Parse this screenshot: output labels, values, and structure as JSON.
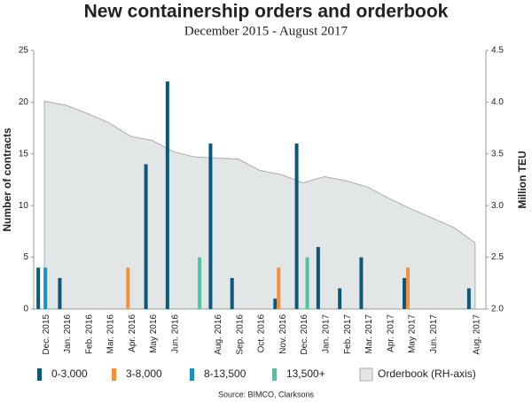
{
  "chart_data": {
    "type": "bar",
    "title": "New containership orders and orderbook",
    "subtitle": "December 2015 - August 2017",
    "y_label": "Number of contracts",
    "y2_label": "Million TEU",
    "source": "Source: BIMCO, Clarksons",
    "categories": [
      "Dec. 2015",
      "Jan. 2016",
      "Feb. 2016",
      "Mar. 2016",
      "Apr. 2016",
      "May 2016",
      "Jun. 2016",
      null,
      "Aug. 2016",
      "Sep. 2016",
      "Oct. 2016",
      "Nov. 2016",
      "Dec. 2016",
      "Jan. 2017",
      "Feb. 2017",
      "Mar. 2017",
      "Apr. 2017",
      "May 2017",
      "Jun. 2017",
      null,
      "Aug. 2017"
    ],
    "series": [
      {
        "name": "0-3,000",
        "color": "#0d587a",
        "values": [
          4,
          3,
          0,
          0,
          0,
          14,
          22,
          0,
          16,
          3,
          0,
          1,
          16,
          6,
          2,
          5,
          0,
          3,
          0,
          0,
          2
        ]
      },
      {
        "name": "3-8,000",
        "color": "#f3913a",
        "values": [
          0,
          0,
          0,
          0,
          4,
          0,
          0,
          0,
          0,
          0,
          0,
          4,
          0,
          0,
          0,
          0,
          0,
          4,
          0,
          0,
          0
        ]
      },
      {
        "name": "8-13,500",
        "color": "#1c8fc0",
        "values": [
          4,
          0,
          0,
          0,
          0,
          0,
          0,
          0,
          0,
          0,
          0,
          0,
          0,
          0,
          0,
          0,
          0,
          0,
          0,
          0,
          0
        ]
      },
      {
        "name": "13,500+",
        "color": "#4fc4a5",
        "values": [
          0,
          0,
          0,
          0,
          0,
          0,
          0,
          5,
          0,
          0,
          0,
          0,
          5,
          0,
          0,
          0,
          0,
          0,
          0,
          0,
          0
        ]
      },
      {
        "name": "Orderbook (RH-axis)",
        "color": "#e3e6e6",
        "type": "area",
        "axis": "y2",
        "values": [
          4.01,
          3.97,
          3.89,
          3.8,
          3.67,
          3.63,
          3.52,
          3.47,
          3.46,
          3.45,
          3.34,
          3.3,
          3.22,
          3.28,
          3.24,
          3.18,
          3.07,
          2.97,
          2.88,
          2.79,
          2.64
        ]
      }
    ],
    "ylim": [
      0,
      25
    ],
    "yticks": [
      0,
      5,
      10,
      15,
      20,
      25
    ],
    "y2lim": [
      2,
      4.5
    ],
    "y2ticks": [
      {
        "value": 2,
        "label": "2.0"
      },
      2.5,
      {
        "value": 3,
        "label": "3.0"
      },
      3.5,
      {
        "value": 4,
        "label": "4.0"
      },
      4.5
    ],
    "grid": false,
    "legend": "bottom"
  }
}
